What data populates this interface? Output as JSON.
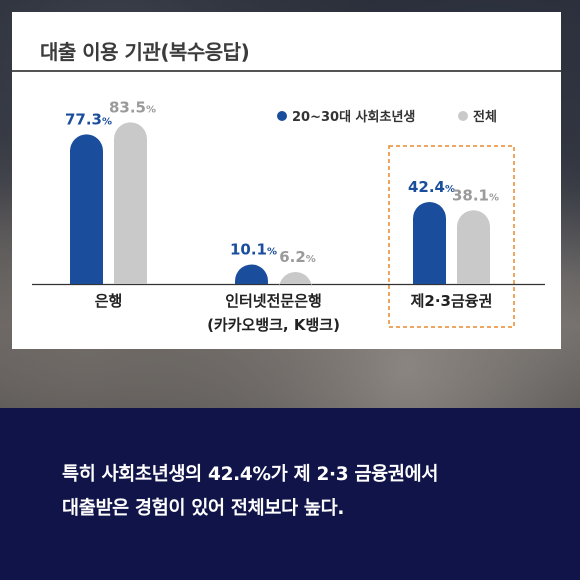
{
  "caption": {
    "line1": "특히 사회초년생의 42.4%가 제 2·3 금융권에서",
    "line2": "대출받은 경험이 있어 전체보다 높다."
  },
  "colors": {
    "caption_bg": "#101449",
    "series_young": "#1a4e9c",
    "series_all": "#c9c9c9",
    "highlight_border": "#e88a2e"
  },
  "chart_data": {
    "type": "bar",
    "title": "대출 이용 기관(복수응답)",
    "categories": [
      "은행",
      "인터넷전문은행\n(카카오뱅크, K뱅크)",
      "제2·3금융권"
    ],
    "series": [
      {
        "name": "20~30대 사회초년생",
        "values": [
          77.3,
          10.1,
          42.4
        ],
        "color": "#1a4e9c"
      },
      {
        "name": "전체",
        "values": [
          83.5,
          6.2,
          38.1
        ],
        "color": "#c9c9c9"
      }
    ],
    "unit": "%",
    "ylim": [
      0,
      100
    ],
    "grid": false,
    "legend": "top-right",
    "highlight_category": "제2·3금융권"
  }
}
